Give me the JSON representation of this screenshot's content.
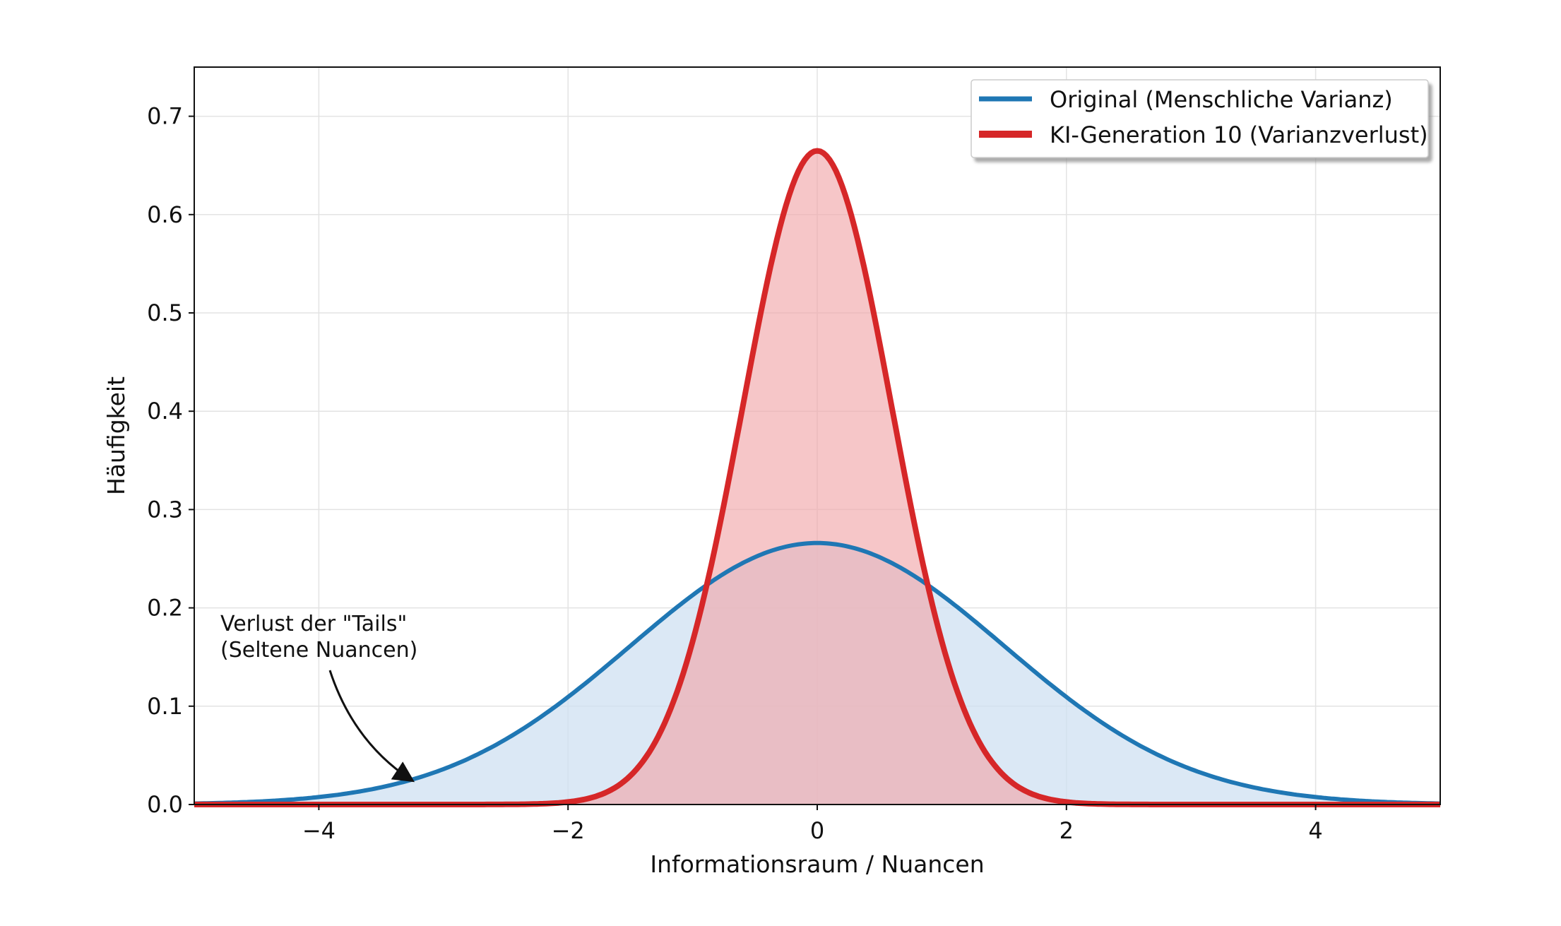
{
  "chart_data": {
    "type": "area",
    "xlabel": "Informationsraum / Nuancen",
    "ylabel": "Häufigkeit",
    "xlim": [
      -5,
      5
    ],
    "ylim": [
      0,
      0.75
    ],
    "xticks": [
      -4,
      -2,
      0,
      2,
      4
    ],
    "xtick_labels": [
      "−4",
      "−2",
      "0",
      "2",
      "4"
    ],
    "yticks": [
      0,
      0.1,
      0.2,
      0.3,
      0.4,
      0.5,
      0.6,
      0.7
    ],
    "ytick_labels": [
      "0.0",
      "0.1",
      "0.2",
      "0.3",
      "0.4",
      "0.5",
      "0.6",
      "0.7"
    ],
    "grid": true,
    "legend_position": "top-right",
    "series": [
      {
        "name": "Original (Menschliche Varianz)",
        "distribution": "normal",
        "mean": 0,
        "std": 1.5,
        "peak": 0.266,
        "color": "#1f77b4",
        "fill": "#cfe0f1"
      },
      {
        "name": "KI-Generation 10 (Varianzverlust)",
        "distribution": "normal",
        "mean": 0,
        "std": 0.6,
        "peak": 0.665,
        "color": "#d62728",
        "fill": "#f1a7aa"
      }
    ],
    "annotation": {
      "lines": [
        "Verlust der \"Tails\"",
        "(Seltene Nuancen)"
      ],
      "points_to": {
        "x": -3.2,
        "y": 0.025
      }
    }
  }
}
